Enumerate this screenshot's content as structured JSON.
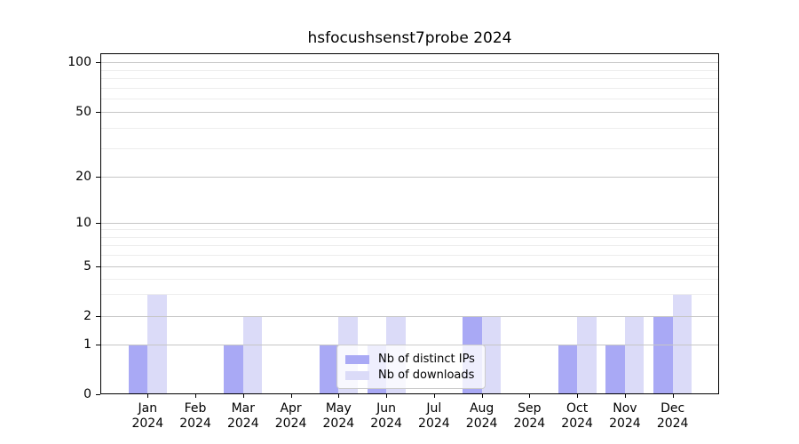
{
  "chart_data": {
    "type": "bar",
    "title": "hsfocushsenst7probe 2024",
    "categories": [
      {
        "month": "Jan",
        "year": "2024"
      },
      {
        "month": "Feb",
        "year": "2024"
      },
      {
        "month": "Mar",
        "year": "2024"
      },
      {
        "month": "Apr",
        "year": "2024"
      },
      {
        "month": "May",
        "year": "2024"
      },
      {
        "month": "Jun",
        "year": "2024"
      },
      {
        "month": "Jul",
        "year": "2024"
      },
      {
        "month": "Aug",
        "year": "2024"
      },
      {
        "month": "Sep",
        "year": "2024"
      },
      {
        "month": "Oct",
        "year": "2024"
      },
      {
        "month": "Nov",
        "year": "2024"
      },
      {
        "month": "Dec",
        "year": "2024"
      }
    ],
    "series": [
      {
        "name": "Nb of distinct IPs",
        "color": "#a9a9f5",
        "values": [
          1,
          0,
          1,
          0,
          1,
          1,
          0,
          2,
          0,
          1,
          1,
          2
        ]
      },
      {
        "name": "Nb of downloads",
        "color": "#dbdbf8",
        "values": [
          3,
          0,
          2,
          0,
          2,
          2,
          0,
          2,
          0,
          2,
          2,
          3
        ]
      }
    ],
    "y_axis": {
      "scale": "log-like",
      "tick_labels": [
        100,
        50,
        20,
        10,
        5,
        2,
        1,
        0
      ],
      "minor_gridlines": [
        3,
        4,
        6,
        7,
        8,
        9,
        30,
        40,
        60,
        70,
        80,
        90
      ],
      "range": [
        0,
        115
      ]
    },
    "legend": {
      "position": "lower center",
      "entries": [
        "Nb of distinct IPs",
        "Nb of downloads"
      ]
    },
    "grid": true,
    "colors": {
      "major_grid": "#c6c6c6",
      "minor_grid": "#ededed",
      "axis": "#000000",
      "text": "#000000"
    }
  }
}
